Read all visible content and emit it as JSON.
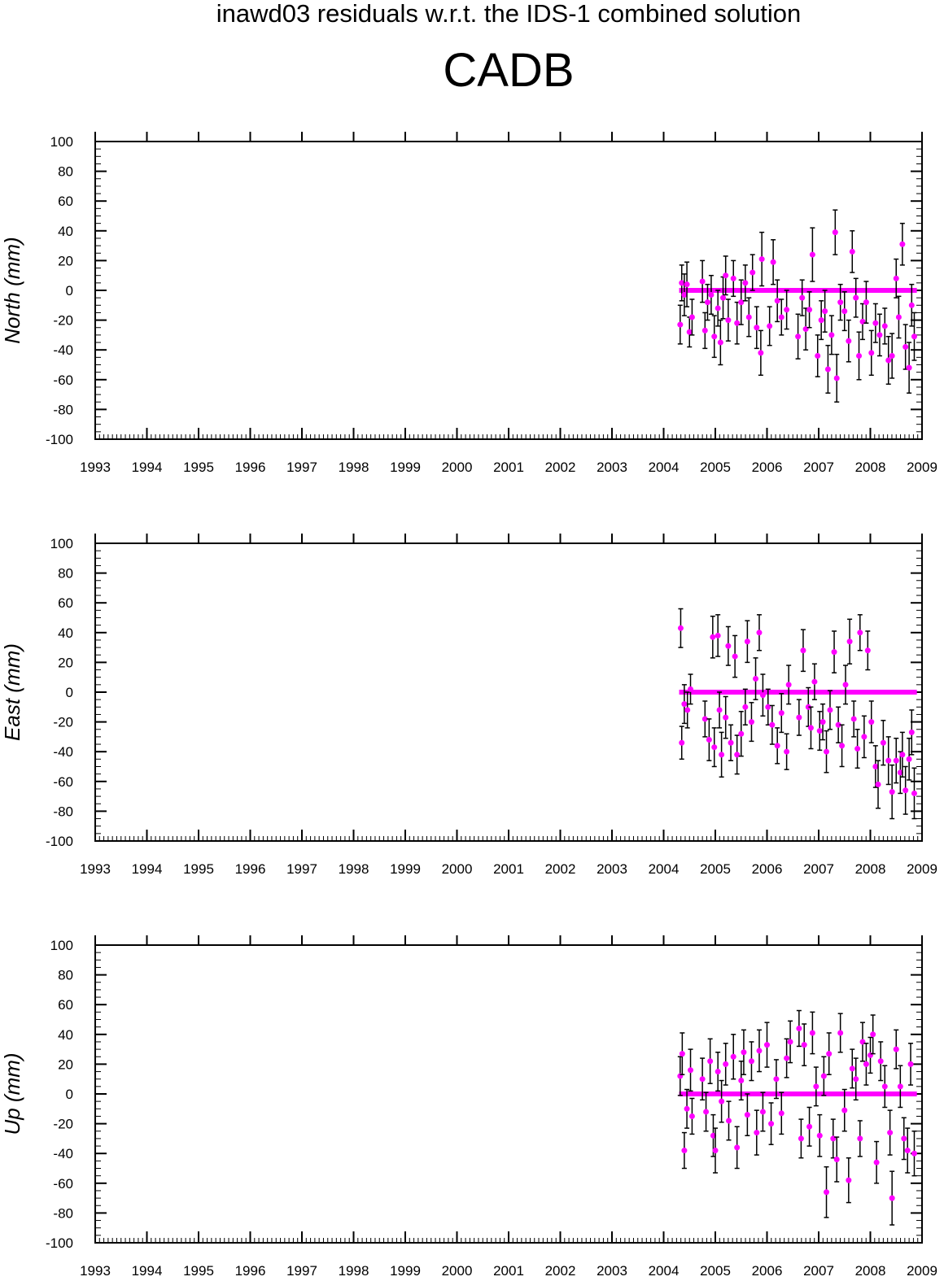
{
  "title": "inawd03 residuals w.r.t. the IDS-1 combined solution",
  "subtitle": "CADB",
  "colors": {
    "marker": "#ff00ff",
    "errorbar": "#000000",
    "axis": "#000000"
  },
  "chart_data": [
    {
      "type": "scatter",
      "ylabel": "North (mm)",
      "xlim": [
        1993,
        2009
      ],
      "ylim": [
        -100,
        100
      ],
      "x_ticks": [
        "1993",
        "1994",
        "1995",
        "1996",
        "1997",
        "1998",
        "1999",
        "2000",
        "2001",
        "2002",
        "2003",
        "2004",
        "2005",
        "2006",
        "2007",
        "2008",
        "2009"
      ],
      "y_ticks": [
        "100",
        "80",
        "60",
        "40",
        "20",
        "0",
        "-20",
        "-40",
        "-60",
        "-80",
        "-100"
      ],
      "x_extent": [
        2004.3,
        2008.9
      ],
      "points": [
        {
          "x": 2004.32,
          "y": -23,
          "err": 13
        },
        {
          "x": 2004.35,
          "y": 5,
          "err": 12
        },
        {
          "x": 2004.4,
          "y": -3,
          "err": 14
        },
        {
          "x": 2004.45,
          "y": 4,
          "err": 15
        },
        {
          "x": 2004.5,
          "y": -28,
          "err": 10
        },
        {
          "x": 2004.55,
          "y": -18,
          "err": 12
        },
        {
          "x": 2004.75,
          "y": 6,
          "err": 14
        },
        {
          "x": 2004.8,
          "y": -27,
          "err": 12
        },
        {
          "x": 2004.85,
          "y": -8,
          "err": 12
        },
        {
          "x": 2004.92,
          "y": -3,
          "err": 13
        },
        {
          "x": 2004.98,
          "y": -31,
          "err": 14
        },
        {
          "x": 2005.05,
          "y": -12,
          "err": 12
        },
        {
          "x": 2005.1,
          "y": -35,
          "err": 15
        },
        {
          "x": 2005.15,
          "y": -5,
          "err": 14
        },
        {
          "x": 2005.2,
          "y": 10,
          "err": 13
        },
        {
          "x": 2005.25,
          "y": -20,
          "err": 14
        },
        {
          "x": 2005.35,
          "y": 8,
          "err": 12
        },
        {
          "x": 2005.42,
          "y": -22,
          "err": 14
        },
        {
          "x": 2005.5,
          "y": -8,
          "err": 15
        },
        {
          "x": 2005.58,
          "y": 5,
          "err": 12
        },
        {
          "x": 2005.65,
          "y": -18,
          "err": 13
        },
        {
          "x": 2005.72,
          "y": 12,
          "err": 12
        },
        {
          "x": 2005.8,
          "y": -25,
          "err": 14
        },
        {
          "x": 2005.88,
          "y": -42,
          "err": 15
        },
        {
          "x": 2005.9,
          "y": 21,
          "err": 18
        },
        {
          "x": 2006.05,
          "y": -24,
          "err": 13
        },
        {
          "x": 2006.12,
          "y": 19,
          "err": 15
        },
        {
          "x": 2006.2,
          "y": -7,
          "err": 14
        },
        {
          "x": 2006.28,
          "y": -18,
          "err": 12
        },
        {
          "x": 2006.38,
          "y": -13,
          "err": 13
        },
        {
          "x": 2006.6,
          "y": -31,
          "err": 15
        },
        {
          "x": 2006.68,
          "y": -5,
          "err": 12
        },
        {
          "x": 2006.75,
          "y": -26,
          "err": 14
        },
        {
          "x": 2006.82,
          "y": -13,
          "err": 12
        },
        {
          "x": 2006.88,
          "y": 24,
          "err": 18
        },
        {
          "x": 2006.98,
          "y": -44,
          "err": 14
        },
        {
          "x": 2007.05,
          "y": -20,
          "err": 13
        },
        {
          "x": 2007.12,
          "y": -14,
          "err": 14
        },
        {
          "x": 2007.18,
          "y": -53,
          "err": 16
        },
        {
          "x": 2007.25,
          "y": -30,
          "err": 13
        },
        {
          "x": 2007.32,
          "y": 39,
          "err": 15
        },
        {
          "x": 2007.35,
          "y": -59,
          "err": 16
        },
        {
          "x": 2007.42,
          "y": -8,
          "err": 12
        },
        {
          "x": 2007.5,
          "y": -14,
          "err": 13
        },
        {
          "x": 2007.58,
          "y": -34,
          "err": 14
        },
        {
          "x": 2007.65,
          "y": 26,
          "err": 14
        },
        {
          "x": 2007.72,
          "y": -5,
          "err": 13
        },
        {
          "x": 2007.78,
          "y": -44,
          "err": 16
        },
        {
          "x": 2007.85,
          "y": -21,
          "err": 12
        },
        {
          "x": 2007.92,
          "y": -8,
          "err": 14
        },
        {
          "x": 2008.02,
          "y": -42,
          "err": 15
        },
        {
          "x": 2008.1,
          "y": -22,
          "err": 13
        },
        {
          "x": 2008.18,
          "y": -30,
          "err": 14
        },
        {
          "x": 2008.28,
          "y": -24,
          "err": 12
        },
        {
          "x": 2008.35,
          "y": -47,
          "err": 16
        },
        {
          "x": 2008.42,
          "y": -44,
          "err": 15
        },
        {
          "x": 2008.5,
          "y": 8,
          "err": 13
        },
        {
          "x": 2008.55,
          "y": -18,
          "err": 14
        },
        {
          "x": 2008.62,
          "y": 31,
          "err": 14
        },
        {
          "x": 2008.68,
          "y": -38,
          "err": 15
        },
        {
          "x": 2008.75,
          "y": -52,
          "err": 17
        },
        {
          "x": 2008.8,
          "y": -10,
          "err": 14
        },
        {
          "x": 2008.85,
          "y": -31,
          "err": 16
        }
      ]
    },
    {
      "type": "scatter",
      "ylabel": "East (mm)",
      "xlim": [
        1993,
        2009
      ],
      "ylim": [
        -100,
        100
      ],
      "x_ticks": [
        "1993",
        "1994",
        "1995",
        "1996",
        "1997",
        "1998",
        "1999",
        "2000",
        "2001",
        "2002",
        "2003",
        "2004",
        "2005",
        "2006",
        "2007",
        "2008",
        "2009"
      ],
      "y_ticks": [
        "100",
        "80",
        "60",
        "40",
        "20",
        "0",
        "-20",
        "-40",
        "-60",
        "-80",
        "-100"
      ],
      "x_extent": [
        2004.3,
        2008.9
      ],
      "points": [
        {
          "x": 2004.33,
          "y": 43,
          "err": 13
        },
        {
          "x": 2004.35,
          "y": -34,
          "err": 11
        },
        {
          "x": 2004.4,
          "y": -8,
          "err": 13
        },
        {
          "x": 2004.46,
          "y": -12,
          "err": 12
        },
        {
          "x": 2004.52,
          "y": 2,
          "err": 10
        },
        {
          "x": 2004.8,
          "y": -18,
          "err": 12
        },
        {
          "x": 2004.88,
          "y": -32,
          "err": 14
        },
        {
          "x": 2004.95,
          "y": 37,
          "err": 14
        },
        {
          "x": 2004.98,
          "y": -37,
          "err": 13
        },
        {
          "x": 2005.05,
          "y": 38,
          "err": 14
        },
        {
          "x": 2005.08,
          "y": -12,
          "err": 12
        },
        {
          "x": 2005.12,
          "y": -42,
          "err": 15
        },
        {
          "x": 2005.2,
          "y": -17,
          "err": 14
        },
        {
          "x": 2005.25,
          "y": 31,
          "err": 13
        },
        {
          "x": 2005.3,
          "y": -34,
          "err": 12
        },
        {
          "x": 2005.38,
          "y": 24,
          "err": 14
        },
        {
          "x": 2005.42,
          "y": -42,
          "err": 13
        },
        {
          "x": 2005.5,
          "y": -28,
          "err": 15
        },
        {
          "x": 2005.58,
          "y": -10,
          "err": 12
        },
        {
          "x": 2005.62,
          "y": 34,
          "err": 14
        },
        {
          "x": 2005.7,
          "y": -20,
          "err": 13
        },
        {
          "x": 2005.78,
          "y": 9,
          "err": 14
        },
        {
          "x": 2005.85,
          "y": 40,
          "err": 12
        },
        {
          "x": 2005.92,
          "y": -2,
          "err": 14
        },
        {
          "x": 2006.02,
          "y": -10,
          "err": 12
        },
        {
          "x": 2006.1,
          "y": -22,
          "err": 13
        },
        {
          "x": 2006.2,
          "y": -36,
          "err": 12
        },
        {
          "x": 2006.28,
          "y": -14,
          "err": 13
        },
        {
          "x": 2006.38,
          "y": -40,
          "err": 12
        },
        {
          "x": 2006.42,
          "y": 5,
          "err": 13
        },
        {
          "x": 2006.62,
          "y": -17,
          "err": 12
        },
        {
          "x": 2006.7,
          "y": 28,
          "err": 14
        },
        {
          "x": 2006.8,
          "y": -10,
          "err": 13
        },
        {
          "x": 2006.85,
          "y": -24,
          "err": 14
        },
        {
          "x": 2006.92,
          "y": 7,
          "err": 12
        },
        {
          "x": 2007.02,
          "y": -26,
          "err": 13
        },
        {
          "x": 2007.08,
          "y": -20,
          "err": 12
        },
        {
          "x": 2007.15,
          "y": -40,
          "err": 14
        },
        {
          "x": 2007.22,
          "y": -12,
          "err": 13
        },
        {
          "x": 2007.3,
          "y": 27,
          "err": 14
        },
        {
          "x": 2007.38,
          "y": -22,
          "err": 12
        },
        {
          "x": 2007.45,
          "y": -36,
          "err": 14
        },
        {
          "x": 2007.52,
          "y": 5,
          "err": 13
        },
        {
          "x": 2007.6,
          "y": 34,
          "err": 15
        },
        {
          "x": 2007.68,
          "y": -18,
          "err": 12
        },
        {
          "x": 2007.75,
          "y": -38,
          "err": 13
        },
        {
          "x": 2007.8,
          "y": 40,
          "err": 12
        },
        {
          "x": 2007.88,
          "y": -30,
          "err": 14
        },
        {
          "x": 2007.95,
          "y": 28,
          "err": 13
        },
        {
          "x": 2008.02,
          "y": -20,
          "err": 14
        },
        {
          "x": 2008.1,
          "y": -50,
          "err": 14
        },
        {
          "x": 2008.15,
          "y": -62,
          "err": 16
        },
        {
          "x": 2008.25,
          "y": -34,
          "err": 15
        },
        {
          "x": 2008.35,
          "y": -46,
          "err": 16
        },
        {
          "x": 2008.42,
          "y": -67,
          "err": 18
        },
        {
          "x": 2008.5,
          "y": -46,
          "err": 15
        },
        {
          "x": 2008.58,
          "y": -54,
          "err": 14
        },
        {
          "x": 2008.62,
          "y": -42,
          "err": 15
        },
        {
          "x": 2008.68,
          "y": -66,
          "err": 16
        },
        {
          "x": 2008.75,
          "y": -45,
          "err": 14
        },
        {
          "x": 2008.8,
          "y": -27,
          "err": 15
        },
        {
          "x": 2008.85,
          "y": -68,
          "err": 17
        }
      ]
    },
    {
      "type": "scatter",
      "ylabel": "Up (mm)",
      "xlim": [
        1993,
        2009
      ],
      "ylim": [
        -100,
        100
      ],
      "x_ticks": [
        "1993",
        "1994",
        "1995",
        "1996",
        "1997",
        "1998",
        "1999",
        "2000",
        "2001",
        "2002",
        "2003",
        "2004",
        "2005",
        "2006",
        "2007",
        "2008",
        "2009"
      ],
      "y_ticks": [
        "100",
        "80",
        "60",
        "40",
        "20",
        "0",
        "-20",
        "-40",
        "-60",
        "-80",
        "-100"
      ],
      "x_extent": [
        2004.3,
        2008.9
      ],
      "points": [
        {
          "x": 2004.32,
          "y": 12,
          "err": 13
        },
        {
          "x": 2004.36,
          "y": 27,
          "err": 14
        },
        {
          "x": 2004.4,
          "y": -38,
          "err": 12
        },
        {
          "x": 2004.45,
          "y": -10,
          "err": 13
        },
        {
          "x": 2004.52,
          "y": 16,
          "err": 14
        },
        {
          "x": 2004.55,
          "y": -15,
          "err": 12
        },
        {
          "x": 2004.75,
          "y": 10,
          "err": 14
        },
        {
          "x": 2004.82,
          "y": -12,
          "err": 13
        },
        {
          "x": 2004.9,
          "y": 22,
          "err": 15
        },
        {
          "x": 2004.96,
          "y": -28,
          "err": 14
        },
        {
          "x": 2005.0,
          "y": -38,
          "err": 15
        },
        {
          "x": 2005.05,
          "y": 15,
          "err": 13
        },
        {
          "x": 2005.12,
          "y": -5,
          "err": 14
        },
        {
          "x": 2005.2,
          "y": 20,
          "err": 14
        },
        {
          "x": 2005.26,
          "y": -18,
          "err": 13
        },
        {
          "x": 2005.35,
          "y": 25,
          "err": 15
        },
        {
          "x": 2005.42,
          "y": -36,
          "err": 14
        },
        {
          "x": 2005.5,
          "y": 9,
          "err": 13
        },
        {
          "x": 2005.55,
          "y": 28,
          "err": 15
        },
        {
          "x": 2005.62,
          "y": -14,
          "err": 14
        },
        {
          "x": 2005.7,
          "y": 22,
          "err": 13
        },
        {
          "x": 2005.8,
          "y": -26,
          "err": 15
        },
        {
          "x": 2005.85,
          "y": 29,
          "err": 14
        },
        {
          "x": 2005.92,
          "y": -12,
          "err": 13
        },
        {
          "x": 2006.0,
          "y": 33,
          "err": 15
        },
        {
          "x": 2006.08,
          "y": -20,
          "err": 14
        },
        {
          "x": 2006.18,
          "y": 10,
          "err": 13
        },
        {
          "x": 2006.28,
          "y": -13,
          "err": 14
        },
        {
          "x": 2006.38,
          "y": 24,
          "err": 13
        },
        {
          "x": 2006.45,
          "y": 35,
          "err": 14
        },
        {
          "x": 2006.62,
          "y": 44,
          "err": 12
        },
        {
          "x": 2006.66,
          "y": -30,
          "err": 13
        },
        {
          "x": 2006.72,
          "y": 33,
          "err": 14
        },
        {
          "x": 2006.82,
          "y": -22,
          "err": 13
        },
        {
          "x": 2006.88,
          "y": 41,
          "err": 14
        },
        {
          "x": 2006.95,
          "y": 5,
          "err": 13
        },
        {
          "x": 2007.02,
          "y": -28,
          "err": 14
        },
        {
          "x": 2007.1,
          "y": 12,
          "err": 13
        },
        {
          "x": 2007.15,
          "y": -66,
          "err": 17
        },
        {
          "x": 2007.2,
          "y": 27,
          "err": 14
        },
        {
          "x": 2007.28,
          "y": -30,
          "err": 13
        },
        {
          "x": 2007.35,
          "y": -44,
          "err": 15
        },
        {
          "x": 2007.42,
          "y": 41,
          "err": 13
        },
        {
          "x": 2007.5,
          "y": -11,
          "err": 14
        },
        {
          "x": 2007.58,
          "y": -58,
          "err": 15
        },
        {
          "x": 2007.65,
          "y": 17,
          "err": 13
        },
        {
          "x": 2007.72,
          "y": 10,
          "err": 14
        },
        {
          "x": 2007.8,
          "y": -30,
          "err": 12
        },
        {
          "x": 2007.85,
          "y": 35,
          "err": 13
        },
        {
          "x": 2007.92,
          "y": 20,
          "err": 14
        },
        {
          "x": 2008.0,
          "y": 26,
          "err": 12
        },
        {
          "x": 2008.05,
          "y": 40,
          "err": 13
        },
        {
          "x": 2008.12,
          "y": -46,
          "err": 14
        },
        {
          "x": 2008.2,
          "y": 22,
          "err": 13
        },
        {
          "x": 2008.28,
          "y": 5,
          "err": 14
        },
        {
          "x": 2008.38,
          "y": -26,
          "err": 15
        },
        {
          "x": 2008.42,
          "y": -70,
          "err": 18
        },
        {
          "x": 2008.5,
          "y": 30,
          "err": 13
        },
        {
          "x": 2008.58,
          "y": 5,
          "err": 14
        },
        {
          "x": 2008.65,
          "y": -30,
          "err": 14
        },
        {
          "x": 2008.72,
          "y": -38,
          "err": 15
        },
        {
          "x": 2008.78,
          "y": 20,
          "err": 14
        },
        {
          "x": 2008.85,
          "y": -40,
          "err": 15
        }
      ]
    }
  ]
}
